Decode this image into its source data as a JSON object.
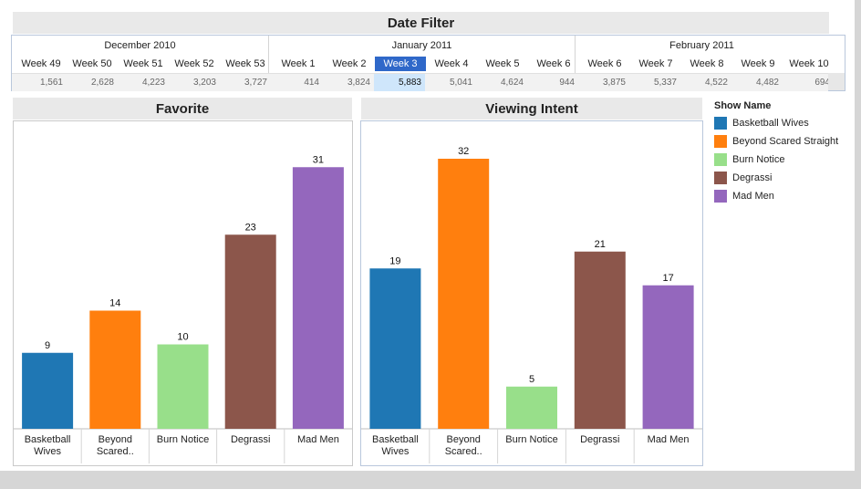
{
  "date_filter": {
    "title": "Date Filter",
    "months": [
      {
        "label": "December 2010",
        "weeks": [
          {
            "label": "Week 49",
            "count": "1,561"
          },
          {
            "label": "Week 50",
            "count": "2,628"
          },
          {
            "label": "Week 51",
            "count": "4,223"
          },
          {
            "label": "Week 52",
            "count": "3,203"
          },
          {
            "label": "Week 53",
            "count": "3,727"
          }
        ]
      },
      {
        "label": "January 2011",
        "weeks": [
          {
            "label": "Week 1",
            "count": "414"
          },
          {
            "label": "Week 2",
            "count": "3,824"
          },
          {
            "label": "Week 3",
            "count": "5,883",
            "selected": true
          },
          {
            "label": "Week 4",
            "count": "5,041"
          },
          {
            "label": "Week 5",
            "count": "4,624"
          },
          {
            "label": "Week 6",
            "count": "944"
          }
        ]
      },
      {
        "label": "February 2011",
        "weeks": [
          {
            "label": "Week 6",
            "count": "3,875"
          },
          {
            "label": "Week 7",
            "count": "5,337"
          },
          {
            "label": "Week 8",
            "count": "4,522"
          },
          {
            "label": "Week 9",
            "count": "4,482"
          },
          {
            "label": "Week 10",
            "count": "694"
          }
        ]
      }
    ]
  },
  "legend": {
    "title": "Show Name",
    "items": [
      {
        "label": "Basketball Wives",
        "color": "#1f77b4"
      },
      {
        "label": "Beyond Scared Straight",
        "color": "#ff7f0e"
      },
      {
        "label": "Burn Notice",
        "color": "#98df8a"
      },
      {
        "label": "Degrassi",
        "color": "#8c564b"
      },
      {
        "label": "Mad Men",
        "color": "#9467bd"
      }
    ]
  },
  "chart_data": [
    {
      "type": "bar",
      "title": "Favorite",
      "categories": [
        "Basketball Wives",
        "Beyond Scared..",
        "Burn Notice",
        "Degrassi",
        "Mad Men"
      ],
      "values": [
        9,
        14,
        10,
        23,
        31
      ],
      "colors": [
        "#1f77b4",
        "#ff7f0e",
        "#98df8a",
        "#8c564b",
        "#9467bd"
      ],
      "xlabel": "",
      "ylabel": "",
      "ylim": [
        0,
        36
      ]
    },
    {
      "type": "bar",
      "title": "Viewing Intent",
      "categories": [
        "Basketball Wives",
        "Beyond Scared..",
        "Burn Notice",
        "Degrassi",
        "Mad Men"
      ],
      "values": [
        19,
        32,
        5,
        21,
        17
      ],
      "colors": [
        "#1f77b4",
        "#ff7f0e",
        "#98df8a",
        "#8c564b",
        "#9467bd"
      ],
      "xlabel": "",
      "ylabel": "",
      "ylim": [
        0,
        36
      ]
    }
  ]
}
